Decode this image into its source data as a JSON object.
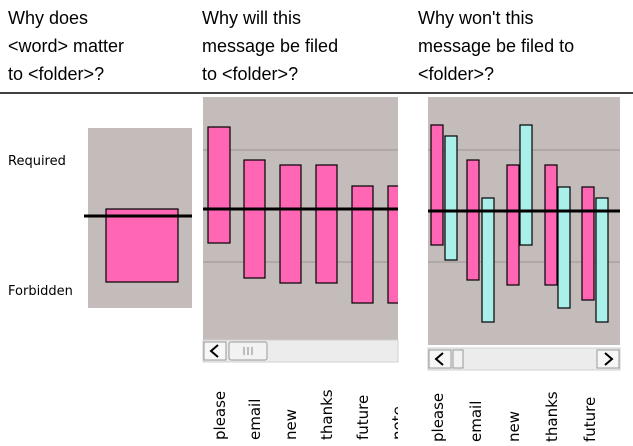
{
  "headers": [
    [
      "Why does",
      "<word> matter",
      "to <folder>?"
    ],
    [
      "Why will this",
      "message be filed",
      "to <folder>?"
    ],
    [
      "Why won't this",
      "message be filed to",
      "<folder>?"
    ]
  ],
  "panel1": {
    "labels": [
      "Required",
      "Forbidden"
    ]
  },
  "panel2": {
    "words": [
      "please",
      "email",
      "new",
      "thanks",
      "future",
      "note"
    ]
  },
  "panel3": {
    "words": [
      "please",
      "email",
      "new",
      "thanks",
      "future"
    ]
  }
}
